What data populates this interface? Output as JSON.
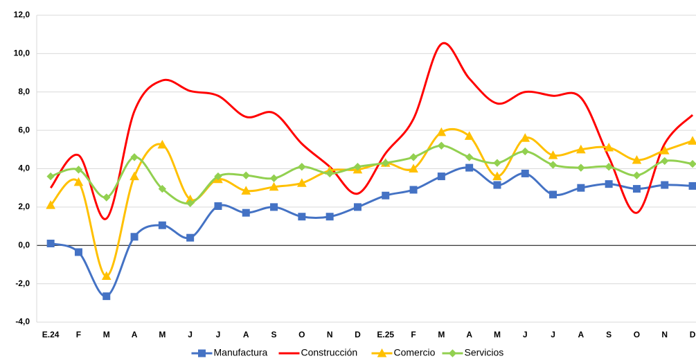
{
  "chart_data": {
    "type": "line",
    "categories": [
      "E.24",
      "F",
      "M",
      "A",
      "M",
      "J",
      "J",
      "A",
      "S",
      "O",
      "N",
      "D",
      "E.25",
      "F",
      "M",
      "A",
      "M",
      "J",
      "J",
      "A",
      "S",
      "O",
      "N",
      "D"
    ],
    "series": [
      {
        "name": "Manufactura",
        "color": "#4472c4",
        "marker": "square",
        "values": [
          0.1,
          -0.35,
          -2.65,
          0.45,
          1.05,
          0.4,
          2.05,
          1.7,
          2.0,
          1.5,
          1.5,
          2.0,
          2.6,
          2.9,
          3.6,
          4.05,
          3.15,
          3.75,
          2.65,
          3.0,
          3.2,
          2.95,
          3.15,
          3.1
        ]
      },
      {
        "name": "Construcción",
        "color": "#ff0000",
        "marker": "none",
        "values": [
          3.0,
          4.7,
          1.4,
          7.0,
          8.6,
          8.05,
          7.8,
          6.7,
          6.9,
          5.3,
          4.1,
          2.7,
          4.8,
          6.6,
          10.5,
          8.7,
          7.4,
          8.0,
          7.8,
          7.7,
          4.6,
          1.7,
          5.3,
          6.8
        ]
      },
      {
        "name": "Comercio",
        "color": "#ffc000",
        "marker": "triangle",
        "values": [
          2.1,
          3.3,
          -1.6,
          3.6,
          5.25,
          2.4,
          3.45,
          2.85,
          3.05,
          3.25,
          3.9,
          3.95,
          4.3,
          4.0,
          5.9,
          5.7,
          3.6,
          5.6,
          4.7,
          5.0,
          5.1,
          4.45,
          4.95,
          5.45
        ]
      },
      {
        "name": "Servicios",
        "color": "#92d050",
        "marker": "diamond",
        "values": [
          3.6,
          3.95,
          2.5,
          4.6,
          2.95,
          2.2,
          3.6,
          3.65,
          3.5,
          4.1,
          3.75,
          4.1,
          4.3,
          4.6,
          5.2,
          4.6,
          4.3,
          4.9,
          4.2,
          4.05,
          4.1,
          3.65,
          4.4,
          4.25
        ]
      }
    ],
    "ylim": [
      -4,
      12
    ],
    "yticks": [
      {
        "value": -4,
        "label": "-4,0"
      },
      {
        "value": -2,
        "label": "-2,0"
      },
      {
        "value": 0,
        "label": "0,0"
      },
      {
        "value": 2,
        "label": "2,0"
      },
      {
        "value": 4,
        "label": "4,0"
      },
      {
        "value": 6,
        "label": "6,0"
      },
      {
        "value": 8,
        "label": "8,0"
      },
      {
        "value": 10,
        "label": "10,0"
      },
      {
        "value": 12,
        "label": "12,0"
      }
    ],
    "grid": true,
    "smooth": true,
    "legend": "bottom"
  }
}
